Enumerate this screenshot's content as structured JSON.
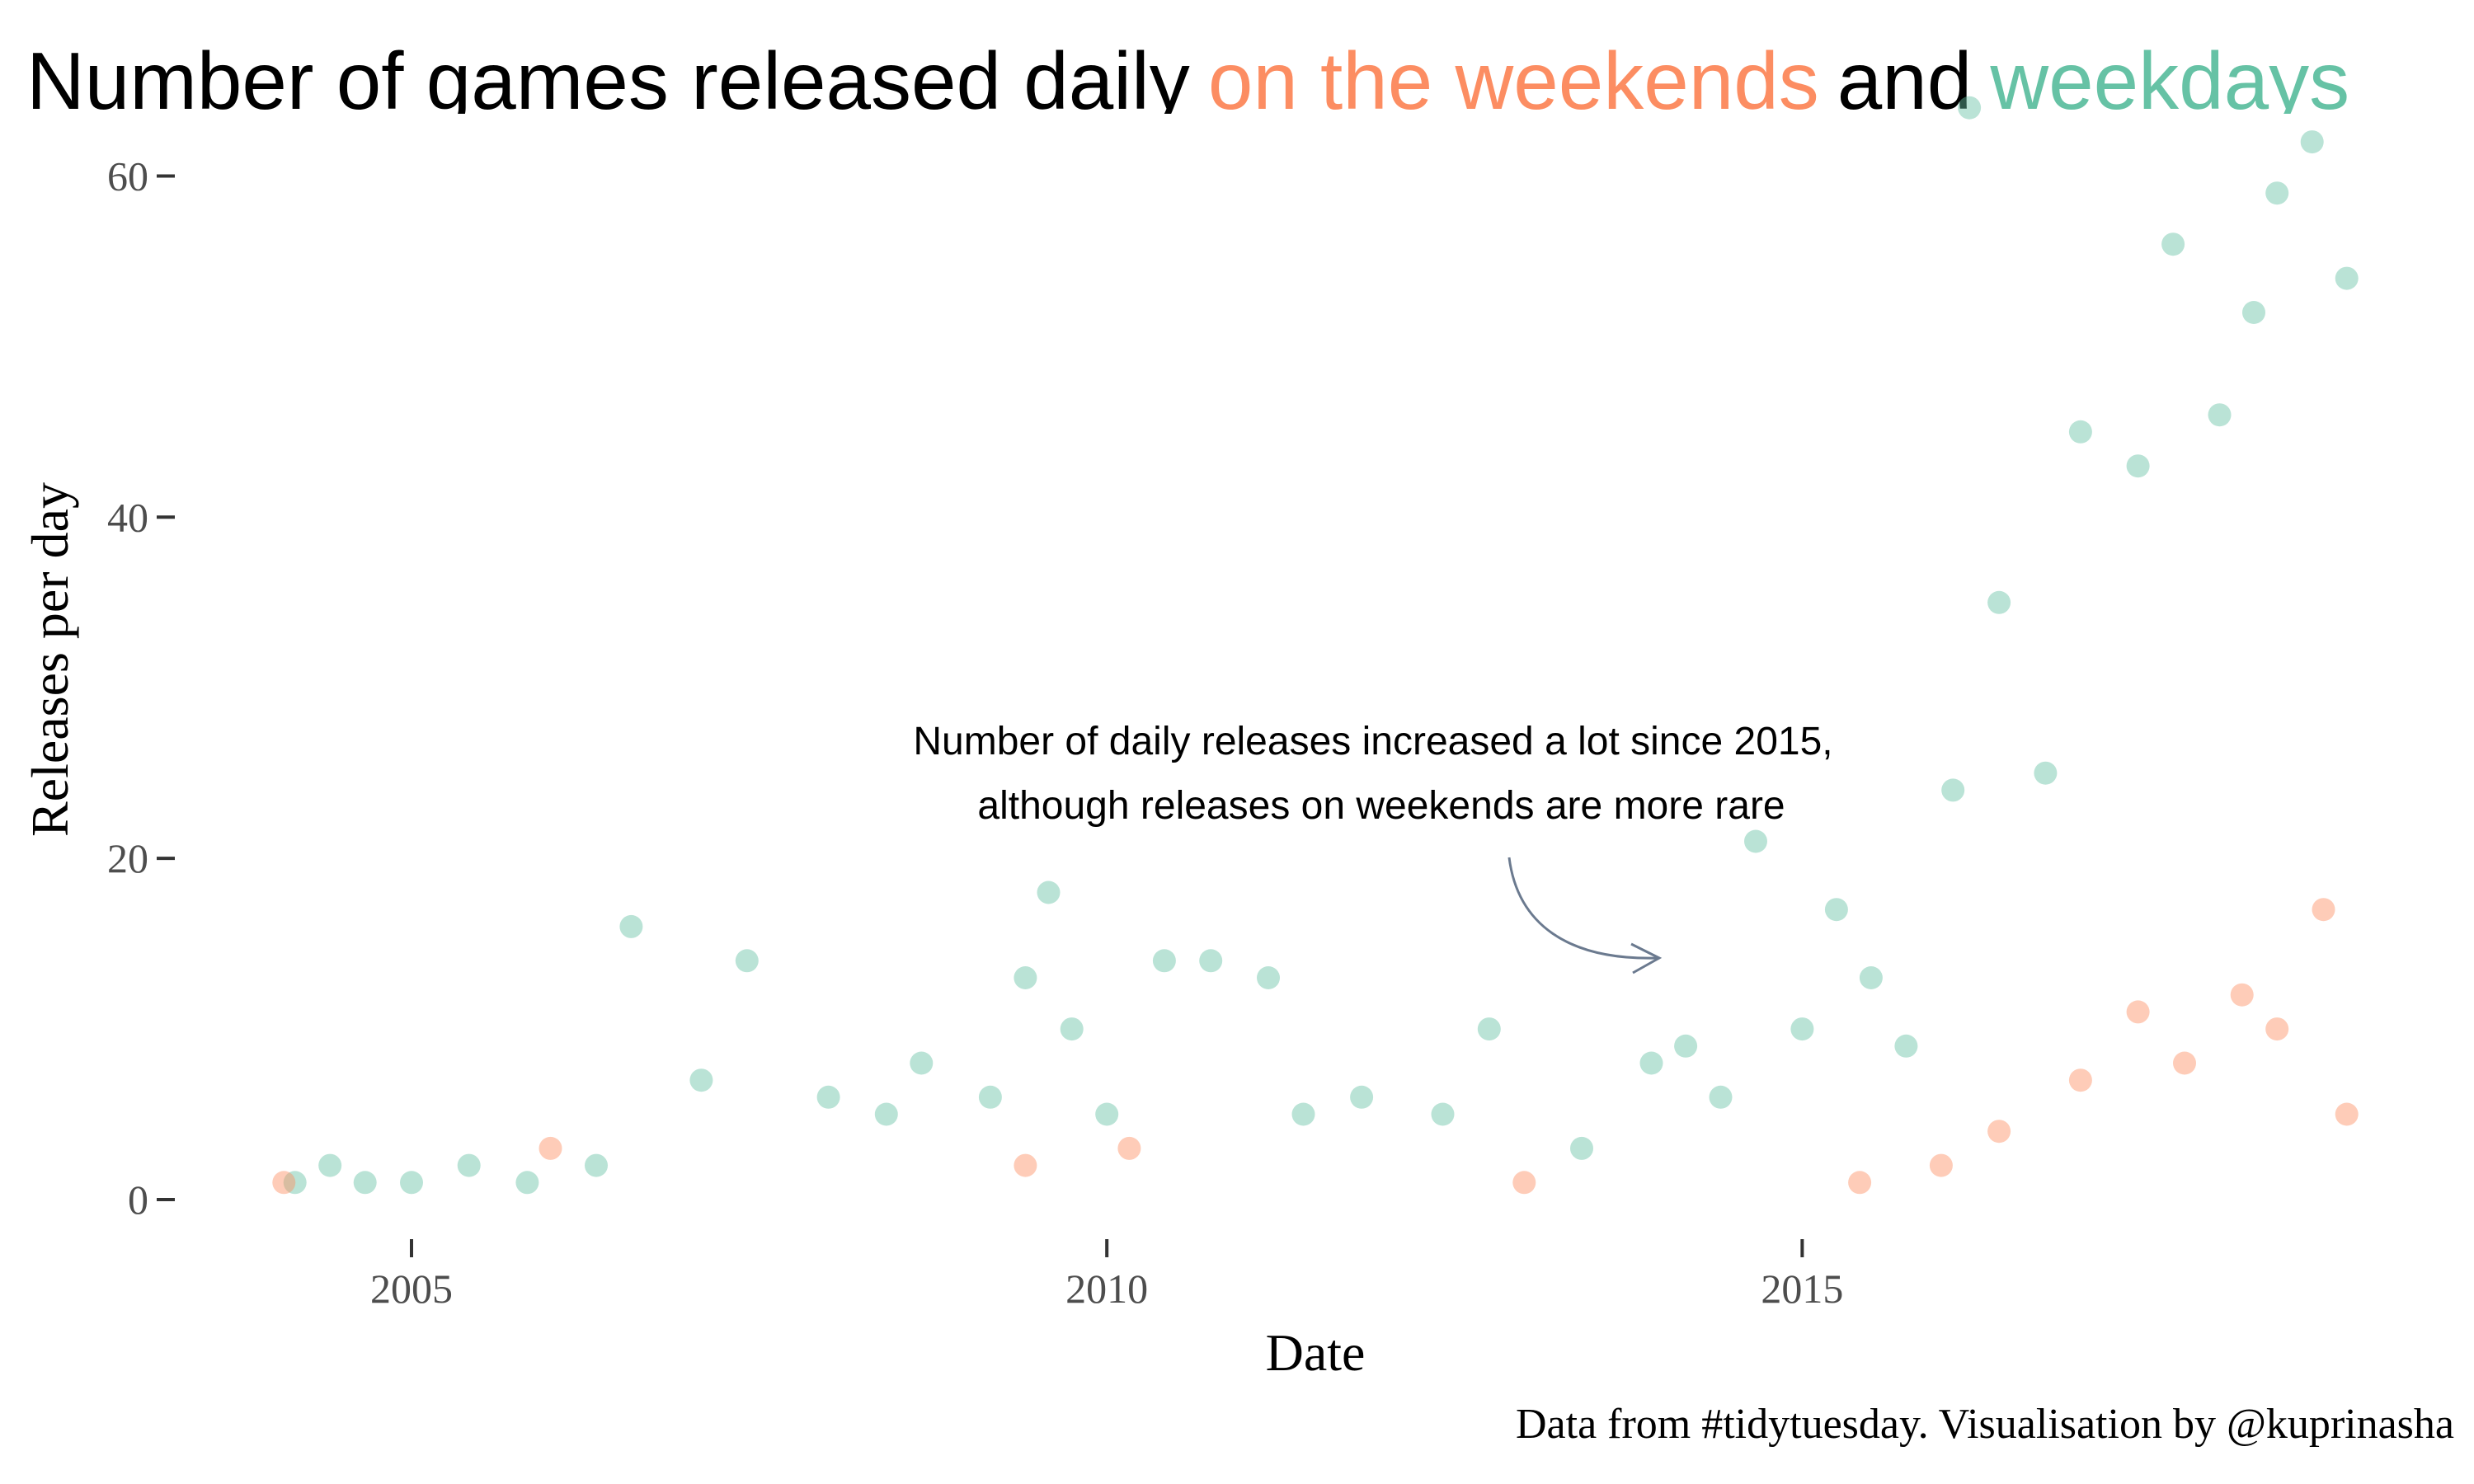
{
  "chart_data": {
    "type": "scatter",
    "title_parts": [
      {
        "text": "Number of games released daily",
        "color": "#000000"
      },
      {
        "text": "on the weekends",
        "color": "#FC8D62"
      },
      {
        "text": "and",
        "color": "#000000"
      },
      {
        "text": "weekdays",
        "color": "#66C2A5"
      }
    ],
    "xlabel": "Date",
    "ylabel": "Releases per day",
    "xlim": [
      "2004-01-01",
      "2019-01-01"
    ],
    "ylim": [
      0,
      65
    ],
    "x_ticks": [
      "2005",
      "2010",
      "2015"
    ],
    "y_ticks": [
      0,
      20,
      40,
      60
    ],
    "grid": false,
    "annotation": {
      "lines": [
        "Number of daily releases increased a lot since 2015,",
        "although releases on weekends are more rare"
      ],
      "arrow_points_to": {
        "x": "2014-03-01",
        "y": 14
      }
    },
    "caption": "Data from #tidytuesday. Visualisation by @kuprinasha",
    "series": [
      {
        "group": "weekdays",
        "color": "#66C2A5",
        "points": [
          {
            "x": "2004-03-01",
            "y": 1
          },
          {
            "x": "2004-06-01",
            "y": 2
          },
          {
            "x": "2004-09-01",
            "y": 1
          },
          {
            "x": "2005-01-01",
            "y": 1
          },
          {
            "x": "2005-06-01",
            "y": 2
          },
          {
            "x": "2005-11-01",
            "y": 1
          },
          {
            "x": "2006-05-01",
            "y": 2
          },
          {
            "x": "2006-08-01",
            "y": 16
          },
          {
            "x": "2007-02-01",
            "y": 7
          },
          {
            "x": "2007-06-01",
            "y": 14
          },
          {
            "x": "2008-01-01",
            "y": 6
          },
          {
            "x": "2008-06-01",
            "y": 5
          },
          {
            "x": "2008-09-01",
            "y": 8
          },
          {
            "x": "2009-03-01",
            "y": 6
          },
          {
            "x": "2009-06-01",
            "y": 13
          },
          {
            "x": "2009-08-01",
            "y": 18
          },
          {
            "x": "2009-10-01",
            "y": 10
          },
          {
            "x": "2010-01-01",
            "y": 5
          },
          {
            "x": "2010-06-01",
            "y": 14
          },
          {
            "x": "2010-10-01",
            "y": 14
          },
          {
            "x": "2011-03-01",
            "y": 13
          },
          {
            "x": "2011-06-01",
            "y": 5
          },
          {
            "x": "2011-11-01",
            "y": 6
          },
          {
            "x": "2012-06-01",
            "y": 5
          },
          {
            "x": "2012-10-01",
            "y": 10
          },
          {
            "x": "2013-06-01",
            "y": 3
          },
          {
            "x": "2013-12-01",
            "y": 8
          },
          {
            "x": "2014-03-01",
            "y": 9
          },
          {
            "x": "2014-06-01",
            "y": 6
          },
          {
            "x": "2014-09-01",
            "y": 21
          },
          {
            "x": "2015-01-01",
            "y": 10
          },
          {
            "x": "2015-04-01",
            "y": 17
          },
          {
            "x": "2015-07-01",
            "y": 13
          },
          {
            "x": "2015-10-01",
            "y": 9
          },
          {
            "x": "2016-02-01",
            "y": 24
          },
          {
            "x": "2016-03-15",
            "y": 64
          },
          {
            "x": "2016-06-01",
            "y": 35
          },
          {
            "x": "2016-10-01",
            "y": 25
          },
          {
            "x": "2017-01-01",
            "y": 45
          },
          {
            "x": "2017-06-01",
            "y": 43
          },
          {
            "x": "2017-09-01",
            "y": 56
          },
          {
            "x": "2018-01-01",
            "y": 46
          },
          {
            "x": "2018-04-01",
            "y": 52
          },
          {
            "x": "2018-06-01",
            "y": 59
          },
          {
            "x": "2018-09-01",
            "y": 62
          },
          {
            "x": "2018-12-01",
            "y": 54
          }
        ]
      },
      {
        "group": "on the weekends",
        "color": "#FC8D62",
        "points": [
          {
            "x": "2004-02-01",
            "y": 1
          },
          {
            "x": "2006-01-01",
            "y": 3
          },
          {
            "x": "2009-06-01",
            "y": 2
          },
          {
            "x": "2010-03-01",
            "y": 3
          },
          {
            "x": "2013-01-01",
            "y": 1
          },
          {
            "x": "2015-06-01",
            "y": 1
          },
          {
            "x": "2016-01-01",
            "y": 2
          },
          {
            "x": "2016-06-01",
            "y": 4
          },
          {
            "x": "2017-01-01",
            "y": 7
          },
          {
            "x": "2017-06-01",
            "y": 11
          },
          {
            "x": "2017-10-01",
            "y": 8
          },
          {
            "x": "2018-03-01",
            "y": 12
          },
          {
            "x": "2018-06-01",
            "y": 10
          },
          {
            "x": "2018-10-01",
            "y": 17
          },
          {
            "x": "2018-12-01",
            "y": 5
          }
        ]
      }
    ]
  }
}
